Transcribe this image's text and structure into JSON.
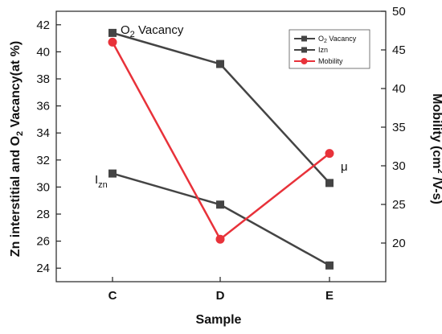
{
  "chart_data": {
    "type": "line",
    "categories": [
      "C",
      "D",
      "E"
    ],
    "xlabel": "Sample",
    "ylabel_left": {
      "main": "Zn interstitial and O",
      "sub": "2",
      "rest": " Vacancy(at %)"
    },
    "ylabel_right": {
      "main": "Mobility (cm",
      "sup": "2",
      "rest": " /V-s)"
    },
    "ylim_left": [
      23,
      43
    ],
    "ylim_right": [
      15,
      50
    ],
    "yticks_left": [
      24,
      26,
      28,
      30,
      32,
      34,
      36,
      38,
      40,
      42
    ],
    "yticks_right": [
      20,
      25,
      30,
      35,
      40,
      45,
      50
    ],
    "series": [
      {
        "name": "O2 Vacancy",
        "axis": "left",
        "marker": "square",
        "color": "#444444",
        "values": [
          41.4,
          39.1,
          30.3
        ]
      },
      {
        "name": "Izn",
        "axis": "left",
        "marker": "square",
        "color": "#444444",
        "values": [
          31.0,
          28.7,
          24.2
        ]
      },
      {
        "name": "Mobility",
        "axis": "right",
        "marker": "circle",
        "color": "#e8323a",
        "values": [
          46.0,
          20.5,
          31.6
        ]
      }
    ],
    "legend": {
      "placement": "top-right",
      "entries": [
        {
          "main": "O",
          "sub": "2",
          "rest": " Vacancy"
        },
        {
          "main": "Izn",
          "sub": "",
          "rest": ""
        },
        {
          "main": "Mobility",
          "sub": "",
          "rest": ""
        }
      ]
    },
    "annotations": {
      "o2": {
        "main": "O",
        "sub": "2",
        "rest": " Vacancy"
      },
      "izn": {
        "main": "I",
        "sub": "zn"
      },
      "mu": "μ"
    },
    "grid": false
  }
}
